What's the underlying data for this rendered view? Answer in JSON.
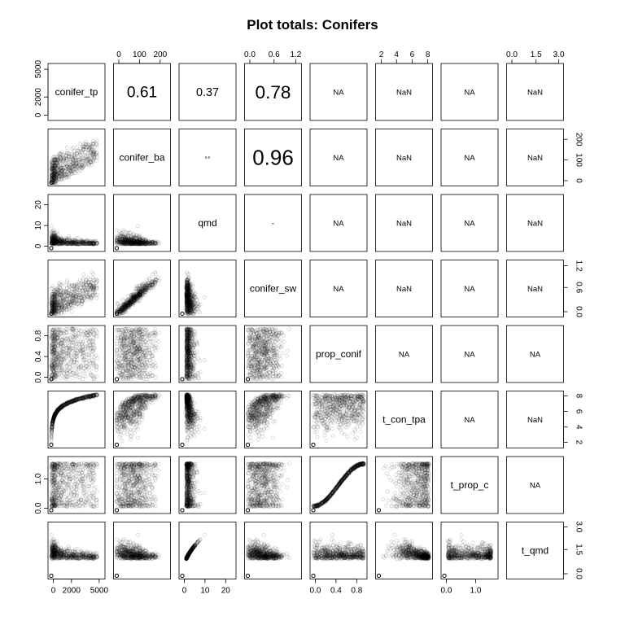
{
  "chart_data": {
    "type": "scatter-matrix",
    "title": "Plot totals: Conifers",
    "variables": [
      "conifer_tp",
      "conifer_ba",
      "qmd",
      "conifer_sw",
      "prop_conif",
      "t_con_tpa",
      "t_prop_c",
      "t_qmd"
    ],
    "axis_ticks": [
      [
        "0",
        "2000",
        "5000"
      ],
      [
        "0",
        "100",
        "200"
      ],
      [
        "0",
        "10",
        "20"
      ],
      [
        "0.0",
        "0.6",
        "1.2"
      ],
      [
        "0.0",
        "0.4",
        "0.8"
      ],
      [
        "2",
        "4",
        "6",
        "8"
      ],
      [
        "0.0",
        "1.0"
      ],
      [
        "0.0",
        "1.5",
        "3.0"
      ]
    ],
    "correlations": [
      {
        "row": 0,
        "col": 1,
        "label": "0.61"
      },
      {
        "row": 0,
        "col": 2,
        "label": "0.37"
      },
      {
        "row": 0,
        "col": 3,
        "label": "0.78"
      },
      {
        "row": 0,
        "col": 4,
        "label": "NA"
      },
      {
        "row": 0,
        "col": 5,
        "label": "NaN"
      },
      {
        "row": 0,
        "col": 6,
        "label": "NA"
      },
      {
        "row": 0,
        "col": 7,
        "label": "NaN"
      },
      {
        "row": 1,
        "col": 2,
        "label": "0.0"
      },
      {
        "row": 1,
        "col": 3,
        "label": "0.96"
      },
      {
        "row": 1,
        "col": 4,
        "label": "NA"
      },
      {
        "row": 1,
        "col": 5,
        "label": "NaN"
      },
      {
        "row": 1,
        "col": 6,
        "label": "NA"
      },
      {
        "row": 1,
        "col": 7,
        "label": "NaN"
      },
      {
        "row": 2,
        "col": 3,
        "label": "-"
      },
      {
        "row": 2,
        "col": 4,
        "label": "NA"
      },
      {
        "row": 2,
        "col": 5,
        "label": "NaN"
      },
      {
        "row": 2,
        "col": 6,
        "label": "NA"
      },
      {
        "row": 2,
        "col": 7,
        "label": "NaN"
      },
      {
        "row": 3,
        "col": 4,
        "label": "NA"
      },
      {
        "row": 3,
        "col": 5,
        "label": "NaN"
      },
      {
        "row": 3,
        "col": 6,
        "label": "NA"
      },
      {
        "row": 3,
        "col": 7,
        "label": "NaN"
      },
      {
        "row": 4,
        "col": 5,
        "label": "NA"
      },
      {
        "row": 4,
        "col": 6,
        "label": "NA"
      },
      {
        "row": 4,
        "col": 7,
        "label": "NA"
      },
      {
        "row": 5,
        "col": 6,
        "label": "NA"
      },
      {
        "row": 5,
        "col": 7,
        "label": "NaN"
      },
      {
        "row": 6,
        "col": 7,
        "label": "NA"
      }
    ],
    "point_color": "#000000",
    "point_opacity": 0.18
  }
}
